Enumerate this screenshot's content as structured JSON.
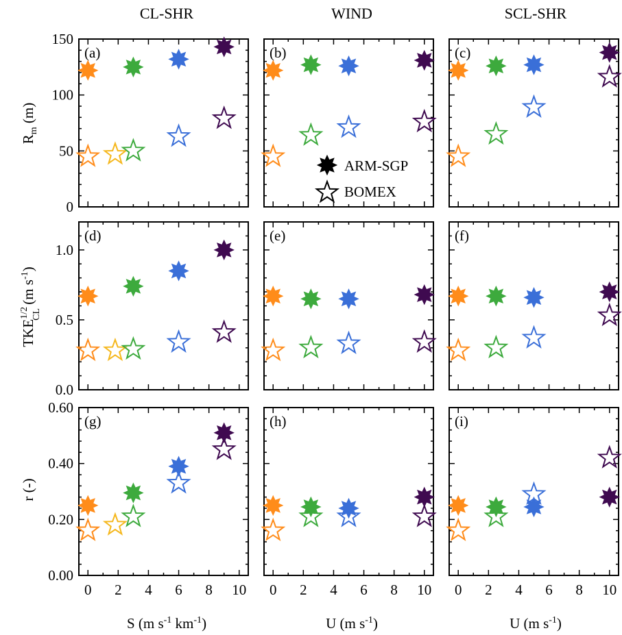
{
  "chart_data": {
    "type": "scatter",
    "layout": "3x3 grid",
    "legend": {
      "placement": "inside panel (b), bottom-right",
      "entries": [
        {
          "label": "ARM-SGP",
          "marker": "filled 8-point star"
        },
        {
          "label": "BOMEX",
          "marker": "open 5-point star"
        }
      ]
    },
    "column_titles": [
      "CL-SHR",
      "WIND",
      "SCL-SHR"
    ],
    "xlabels": {
      "col1": {
        "main": "S (m s",
        "sup1": "-1",
        "mid": " km",
        "sup2": "-1",
        "end": ")"
      },
      "col2": {
        "main": "U (m s",
        "sup1": "-1",
        "end": ")"
      },
      "col3": {
        "main": "U (m s",
        "sup1": "-1",
        "end": ")"
      }
    },
    "ylabels": {
      "row1": {
        "main": "R",
        "sub": "m",
        "end": " (m)"
      },
      "row2": {
        "main": "TKE",
        "sup": "1/2",
        "sub": "CL",
        "end": " (m s",
        "sup2": "-1",
        "end2": ")"
      },
      "row3": {
        "main": "r (-)"
      }
    },
    "xlim": [
      -0.6,
      10.6
    ],
    "xticks": [
      "0",
      "2",
      "4",
      "6",
      "8",
      "10"
    ],
    "rows": [
      {
        "ylim": [
          0,
          150
        ],
        "yticks": [
          "0",
          "50",
          "100",
          "150"
        ],
        "ytick_values": [
          0,
          50,
          100,
          150
        ]
      },
      {
        "ylim": [
          0,
          1.2
        ],
        "yticks": [
          "0.0",
          "0.5",
          "1.0"
        ],
        "ytick_values": [
          0,
          0.5,
          1.0
        ]
      },
      {
        "ylim": [
          0,
          0.6
        ],
        "yticks": [
          "0.00",
          "0.20",
          "0.40",
          "0.60"
        ],
        "ytick_values": [
          0,
          0.2,
          0.4,
          0.6
        ]
      }
    ],
    "panels": [
      {
        "letter": "(a)",
        "row": 0,
        "col": 0,
        "arm_sgp": [
          {
            "x": 0,
            "y": 122,
            "color": "#FF8C1A"
          },
          {
            "x": 3,
            "y": 125,
            "color": "#3DAA3D"
          },
          {
            "x": 6,
            "y": 132,
            "color": "#3A6FD8"
          },
          {
            "x": 9,
            "y": 143,
            "color": "#3F0A50"
          }
        ],
        "bomex": [
          {
            "x": 0,
            "y": 45,
            "color": "#FF8C1A"
          },
          {
            "x": 1.8,
            "y": 47,
            "color": "#F5B71C"
          },
          {
            "x": 3,
            "y": 50,
            "color": "#3DAA3D"
          },
          {
            "x": 6,
            "y": 63,
            "color": "#3A6FD8"
          },
          {
            "x": 9,
            "y": 79,
            "color": "#3F0A50"
          }
        ]
      },
      {
        "letter": "(b)",
        "row": 0,
        "col": 1,
        "arm_sgp": [
          {
            "x": 0,
            "y": 122,
            "color": "#FF8C1A"
          },
          {
            "x": 2.5,
            "y": 127,
            "color": "#3DAA3D"
          },
          {
            "x": 5,
            "y": 126,
            "color": "#3A6FD8"
          },
          {
            "x": 10,
            "y": 131,
            "color": "#3F0A50"
          }
        ],
        "bomex": [
          {
            "x": 0,
            "y": 45,
            "color": "#FF8C1A"
          },
          {
            "x": 2.5,
            "y": 64,
            "color": "#3DAA3D"
          },
          {
            "x": 5,
            "y": 71,
            "color": "#3A6FD8"
          },
          {
            "x": 10,
            "y": 76,
            "color": "#3F0A50"
          }
        ]
      },
      {
        "letter": "(c)",
        "row": 0,
        "col": 2,
        "arm_sgp": [
          {
            "x": 0,
            "y": 122,
            "color": "#FF8C1A"
          },
          {
            "x": 2.5,
            "y": 126,
            "color": "#3DAA3D"
          },
          {
            "x": 5,
            "y": 127,
            "color": "#3A6FD8"
          },
          {
            "x": 10,
            "y": 138,
            "color": "#3F0A50"
          }
        ],
        "bomex": [
          {
            "x": 0,
            "y": 45,
            "color": "#FF8C1A"
          },
          {
            "x": 2.5,
            "y": 65,
            "color": "#3DAA3D"
          },
          {
            "x": 5,
            "y": 89,
            "color": "#3A6FD8"
          },
          {
            "x": 10,
            "y": 116,
            "color": "#3F0A50"
          }
        ]
      },
      {
        "letter": "(d)",
        "row": 1,
        "col": 0,
        "arm_sgp": [
          {
            "x": 0,
            "y": 0.67,
            "color": "#FF8C1A"
          },
          {
            "x": 3,
            "y": 0.74,
            "color": "#3DAA3D"
          },
          {
            "x": 6,
            "y": 0.85,
            "color": "#3A6FD8"
          },
          {
            "x": 9,
            "y": 1.0,
            "color": "#3F0A50"
          }
        ],
        "bomex": [
          {
            "x": 0,
            "y": 0.28,
            "color": "#FF8C1A"
          },
          {
            "x": 1.8,
            "y": 0.28,
            "color": "#F5B71C"
          },
          {
            "x": 3,
            "y": 0.29,
            "color": "#3DAA3D"
          },
          {
            "x": 6,
            "y": 0.34,
            "color": "#3A6FD8"
          },
          {
            "x": 9,
            "y": 0.41,
            "color": "#3F0A50"
          }
        ]
      },
      {
        "letter": "(e)",
        "row": 1,
        "col": 1,
        "arm_sgp": [
          {
            "x": 0,
            "y": 0.67,
            "color": "#FF8C1A"
          },
          {
            "x": 2.5,
            "y": 0.65,
            "color": "#3DAA3D"
          },
          {
            "x": 5,
            "y": 0.65,
            "color": "#3A6FD8"
          },
          {
            "x": 10,
            "y": 0.68,
            "color": "#3F0A50"
          }
        ],
        "bomex": [
          {
            "x": 0,
            "y": 0.28,
            "color": "#FF8C1A"
          },
          {
            "x": 2.5,
            "y": 0.3,
            "color": "#3DAA3D"
          },
          {
            "x": 5,
            "y": 0.33,
            "color": "#3A6FD8"
          },
          {
            "x": 10,
            "y": 0.34,
            "color": "#3F0A50"
          }
        ]
      },
      {
        "letter": "(f)",
        "row": 1,
        "col": 2,
        "arm_sgp": [
          {
            "x": 0,
            "y": 0.67,
            "color": "#FF8C1A"
          },
          {
            "x": 2.5,
            "y": 0.67,
            "color": "#3DAA3D"
          },
          {
            "x": 5,
            "y": 0.66,
            "color": "#3A6FD8"
          },
          {
            "x": 10,
            "y": 0.7,
            "color": "#3F0A50"
          }
        ],
        "bomex": [
          {
            "x": 0,
            "y": 0.28,
            "color": "#FF8C1A"
          },
          {
            "x": 2.5,
            "y": 0.3,
            "color": "#3DAA3D"
          },
          {
            "x": 5,
            "y": 0.37,
            "color": "#3A6FD8"
          },
          {
            "x": 10,
            "y": 0.53,
            "color": "#3F0A50"
          }
        ]
      },
      {
        "letter": "(g)",
        "row": 2,
        "col": 0,
        "arm_sgp": [
          {
            "x": 0,
            "y": 0.25,
            "color": "#FF8C1A"
          },
          {
            "x": 3,
            "y": 0.295,
            "color": "#3DAA3D"
          },
          {
            "x": 6,
            "y": 0.39,
            "color": "#3A6FD8"
          },
          {
            "x": 9,
            "y": 0.51,
            "color": "#3F0A50"
          }
        ],
        "bomex": [
          {
            "x": 0,
            "y": 0.16,
            "color": "#FF8C1A"
          },
          {
            "x": 1.8,
            "y": 0.18,
            "color": "#F5B71C"
          },
          {
            "x": 3,
            "y": 0.21,
            "color": "#3DAA3D"
          },
          {
            "x": 6,
            "y": 0.33,
            "color": "#3A6FD8"
          },
          {
            "x": 9,
            "y": 0.45,
            "color": "#3F0A50"
          }
        ]
      },
      {
        "letter": "(h)",
        "row": 2,
        "col": 1,
        "arm_sgp": [
          {
            "x": 0,
            "y": 0.25,
            "color": "#FF8C1A"
          },
          {
            "x": 2.5,
            "y": 0.245,
            "color": "#3DAA3D"
          },
          {
            "x": 5,
            "y": 0.24,
            "color": "#3A6FD8"
          },
          {
            "x": 10,
            "y": 0.28,
            "color": "#3F0A50"
          }
        ],
        "bomex": [
          {
            "x": 0,
            "y": 0.16,
            "color": "#FF8C1A"
          },
          {
            "x": 2.5,
            "y": 0.21,
            "color": "#3DAA3D"
          },
          {
            "x": 5,
            "y": 0.21,
            "color": "#3A6FD8"
          },
          {
            "x": 10,
            "y": 0.21,
            "color": "#3F0A50"
          }
        ]
      },
      {
        "letter": "(i)",
        "row": 2,
        "col": 2,
        "arm_sgp": [
          {
            "x": 0,
            "y": 0.25,
            "color": "#FF8C1A"
          },
          {
            "x": 2.5,
            "y": 0.245,
            "color": "#3DAA3D"
          },
          {
            "x": 5,
            "y": 0.245,
            "color": "#3A6FD8"
          },
          {
            "x": 10,
            "y": 0.28,
            "color": "#3F0A50"
          }
        ],
        "bomex": [
          {
            "x": 0,
            "y": 0.16,
            "color": "#FF8C1A"
          },
          {
            "x": 2.5,
            "y": 0.21,
            "color": "#3DAA3D"
          },
          {
            "x": 5,
            "y": 0.29,
            "color": "#3A6FD8"
          },
          {
            "x": 10,
            "y": 0.42,
            "color": "#3F0A50"
          }
        ]
      }
    ]
  }
}
